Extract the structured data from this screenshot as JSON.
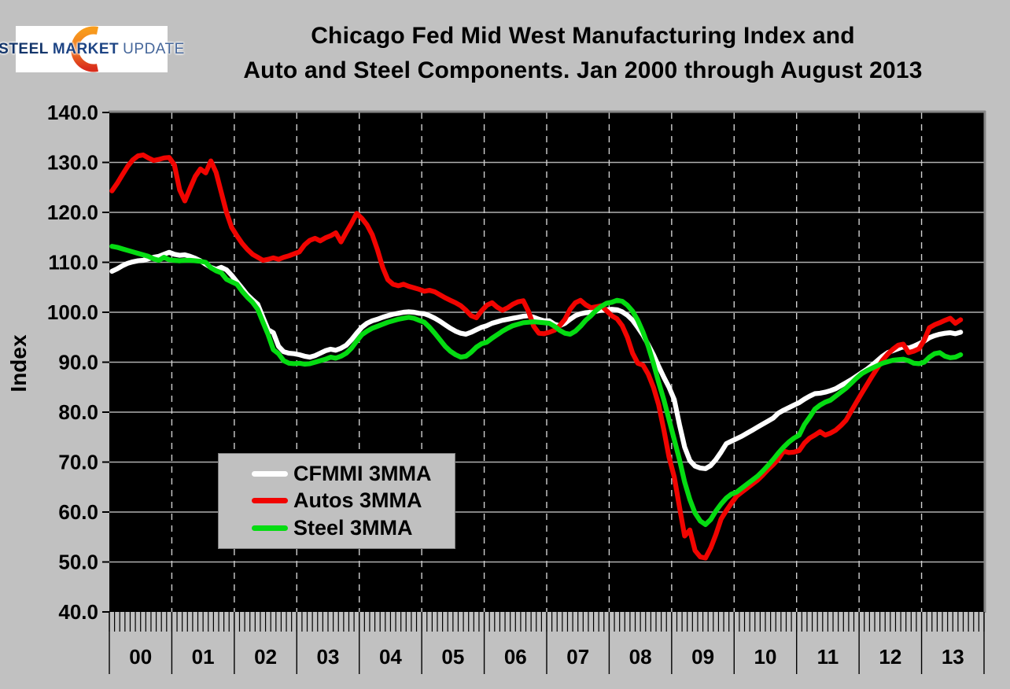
{
  "logo": {
    "word1": "STEEL",
    "word2": "MARKET",
    "word3": "UPDATE"
  },
  "title": {
    "line1": "Chicago Fed Mid West Manufacturing Index and",
    "line2": "Auto and Steel Components. Jan 2000 through August 2013"
  },
  "y_axis": {
    "label": "Index",
    "ticks": [
      "140.0",
      "130.0",
      "120.0",
      "110.0",
      "100.0",
      "90.0",
      "80.0",
      "70.0",
      "60.0",
      "50.0",
      "40.0"
    ]
  },
  "x_axis": {
    "years": [
      "00",
      "01",
      "02",
      "03",
      "04",
      "05",
      "06",
      "07",
      "08",
      "09",
      "10",
      "11",
      "12",
      "13"
    ]
  },
  "legend": {
    "items": [
      {
        "label": "CFMMI 3MMA",
        "color": "#ffffff"
      },
      {
        "label": "Autos 3MMA",
        "color": "#f10400"
      },
      {
        "label": "Steel 3MMA",
        "color": "#05dc12"
      }
    ]
  },
  "colors": {
    "background": "#c1c1c1",
    "plot_background": "#000000",
    "h_gridline": "#b0b0b0",
    "v_gridline_dashed": "#cfcfcf",
    "plot_border": "#868686",
    "axis_tick": "#000000"
  },
  "chart_data": {
    "type": "line",
    "title": "Chicago Fed Mid West Manufacturing Index and Auto and Steel Components. Jan 2000 through August 2013",
    "xlabel": "",
    "ylabel": "Index",
    "ylim": [
      40,
      140
    ],
    "y_tick_step": 10,
    "grid": "horizontal solid, vertical dashed at each January",
    "legend_position": "inside lower-left, gray box",
    "x_domain": "monthly, Jan 2000 through Aug 2013 (164 points); axis spans 14 year segments labeled 00-13 with monthly minor ticks",
    "series": [
      {
        "name": "CFMMI 3MMA",
        "color": "#ffffff",
        "values": [
          108.2,
          108.7,
          109.3,
          109.8,
          110.1,
          110.3,
          110.4,
          110.7,
          111.0,
          111.2,
          111.6,
          112.0,
          111.6,
          111.4,
          111.5,
          111.2,
          110.8,
          110.3,
          109.6,
          109.0,
          108.6,
          109.0,
          108.5,
          107.4,
          106.1,
          104.8,
          103.5,
          102.5,
          101.6,
          99.0,
          96.5,
          95.9,
          93.2,
          92.1,
          91.8,
          91.7,
          91.5,
          91.2,
          91.0,
          91.3,
          91.8,
          92.3,
          92.6,
          92.4,
          92.8,
          93.4,
          94.5,
          95.8,
          97.0,
          97.8,
          98.3,
          98.6,
          99.0,
          99.3,
          99.6,
          99.8,
          100.0,
          100.1,
          100.0,
          99.8,
          99.7,
          99.3,
          98.8,
          98.2,
          97.5,
          96.8,
          96.2,
          95.8,
          95.6,
          96.0,
          96.5,
          97.0,
          97.3,
          97.8,
          98.1,
          98.4,
          98.6,
          98.8,
          99.0,
          99.2,
          99.3,
          99.0,
          98.6,
          98.3,
          98.3,
          97.6,
          97.3,
          97.8,
          98.6,
          99.3,
          99.7,
          99.9,
          100.0,
          100.2,
          100.4,
          100.5,
          100.6,
          100.5,
          100.1,
          99.4,
          98.4,
          97.0,
          95.4,
          93.5,
          91.5,
          89.2,
          87.0,
          85.0,
          82.5,
          77.5,
          73.0,
          70.3,
          69.2,
          68.8,
          68.7,
          69.3,
          70.5,
          72.0,
          73.7,
          74.2,
          74.7,
          75.2,
          75.8,
          76.4,
          77.0,
          77.6,
          78.2,
          78.8,
          79.8,
          80.4,
          80.9,
          81.4,
          81.9,
          82.6,
          83.2,
          83.7,
          83.8,
          84.0,
          84.3,
          84.7,
          85.3,
          85.9,
          86.5,
          87.2,
          87.9,
          88.6,
          89.4,
          90.3,
          91.2,
          91.9,
          92.3,
          92.7,
          93.1,
          92.8,
          93.2,
          93.7,
          94.2,
          94.9,
          95.3,
          95.6,
          95.8,
          95.9,
          95.7,
          96.0
        ]
      },
      {
        "name": "Autos 3MMA",
        "color": "#f10400",
        "values": [
          124.3,
          125.8,
          127.5,
          129.2,
          130.5,
          131.3,
          131.5,
          130.9,
          130.4,
          130.6,
          130.9,
          131.0,
          129.5,
          124.5,
          122.3,
          124.8,
          127.2,
          128.7,
          127.9,
          130.3,
          128.0,
          124.0,
          120.0,
          117.0,
          115.3,
          113.8,
          112.6,
          111.6,
          111.0,
          110.4,
          110.6,
          110.9,
          110.6,
          111.0,
          111.3,
          111.7,
          112.1,
          113.5,
          114.4,
          114.8,
          114.3,
          114.9,
          115.3,
          115.9,
          114.1,
          116.0,
          117.8,
          119.8,
          118.8,
          117.5,
          115.5,
          112.5,
          109.0,
          106.5,
          105.6,
          105.3,
          105.6,
          105.2,
          104.9,
          104.6,
          104.2,
          104.4,
          104.1,
          103.5,
          102.9,
          102.4,
          101.9,
          101.3,
          100.4,
          99.3,
          98.9,
          100.3,
          101.4,
          101.9,
          101.0,
          100.4,
          100.9,
          101.6,
          102.1,
          102.3,
          100.2,
          97.2,
          95.8,
          95.7,
          96.0,
          96.4,
          97.3,
          98.6,
          100.6,
          101.9,
          102.4,
          101.5,
          100.9,
          101.1,
          101.3,
          100.3,
          99.3,
          98.7,
          97.3,
          95.0,
          91.8,
          89.8,
          89.4,
          87.6,
          85.0,
          81.5,
          76.5,
          71.0,
          67.0,
          61.0,
          55.2,
          56.4,
          52.3,
          51.0,
          50.8,
          52.8,
          55.5,
          58.6,
          60.3,
          61.8,
          63.2,
          64.0,
          64.8,
          65.6,
          66.4,
          67.4,
          68.5,
          69.5,
          70.6,
          72.2,
          71.9,
          72.0,
          72.3,
          73.8,
          74.8,
          75.4,
          76.1,
          75.4,
          75.8,
          76.4,
          77.3,
          78.4,
          80.2,
          82.0,
          83.8,
          85.5,
          87.2,
          88.8,
          90.4,
          91.6,
          92.6,
          93.4,
          93.6,
          91.9,
          92.2,
          92.7,
          94.4,
          96.9,
          97.5,
          97.9,
          98.4,
          98.8,
          97.8,
          98.5
        ]
      },
      {
        "name": "Steel 3MMA",
        "color": "#05dc12",
        "values": [
          113.2,
          113.0,
          112.7,
          112.4,
          112.1,
          111.8,
          111.5,
          111.2,
          110.7,
          110.4,
          111.0,
          110.5,
          110.4,
          110.3,
          110.4,
          110.4,
          110.3,
          110.2,
          110.0,
          108.9,
          108.3,
          107.9,
          106.6,
          106.1,
          105.6,
          104.2,
          103.0,
          102.0,
          100.6,
          98.0,
          95.5,
          92.5,
          91.7,
          90.3,
          89.8,
          89.7,
          89.8,
          89.6,
          89.7,
          90.0,
          90.3,
          90.6,
          91.0,
          90.8,
          91.2,
          91.8,
          92.8,
          94.2,
          95.5,
          96.2,
          96.8,
          97.2,
          97.6,
          98.0,
          98.3,
          98.6,
          98.8,
          99.0,
          98.8,
          98.4,
          98.0,
          97.0,
          95.8,
          94.5,
          93.2,
          92.2,
          91.5,
          91.0,
          91.2,
          92.0,
          93.0,
          93.7,
          94.0,
          94.8,
          95.5,
          96.2,
          96.8,
          97.3,
          97.6,
          97.9,
          98.0,
          98.1,
          98.0,
          97.9,
          97.8,
          97.2,
          96.4,
          95.8,
          95.6,
          96.2,
          97.2,
          98.4,
          99.3,
          100.4,
          101.2,
          101.8,
          102.0,
          102.4,
          102.2,
          101.4,
          100.2,
          98.4,
          96.0,
          93.2,
          89.8,
          86.0,
          82.5,
          78.5,
          74.5,
          70.5,
          66.0,
          62.5,
          59.8,
          58.2,
          57.5,
          58.5,
          60.2,
          61.6,
          62.8,
          63.6,
          64.0,
          64.8,
          65.6,
          66.4,
          67.2,
          68.2,
          69.3,
          70.5,
          71.8,
          73.0,
          74.0,
          74.8,
          75.4,
          77.5,
          79.0,
          80.6,
          81.4,
          82.0,
          82.4,
          83.2,
          84.0,
          84.8,
          85.8,
          86.8,
          87.7,
          88.3,
          88.8,
          89.3,
          89.8,
          90.1,
          90.4,
          90.5,
          90.6,
          90.3,
          89.8,
          89.7,
          90.0,
          91.0,
          91.7,
          91.9,
          91.2,
          90.9,
          91.0,
          91.5
        ]
      }
    ]
  }
}
